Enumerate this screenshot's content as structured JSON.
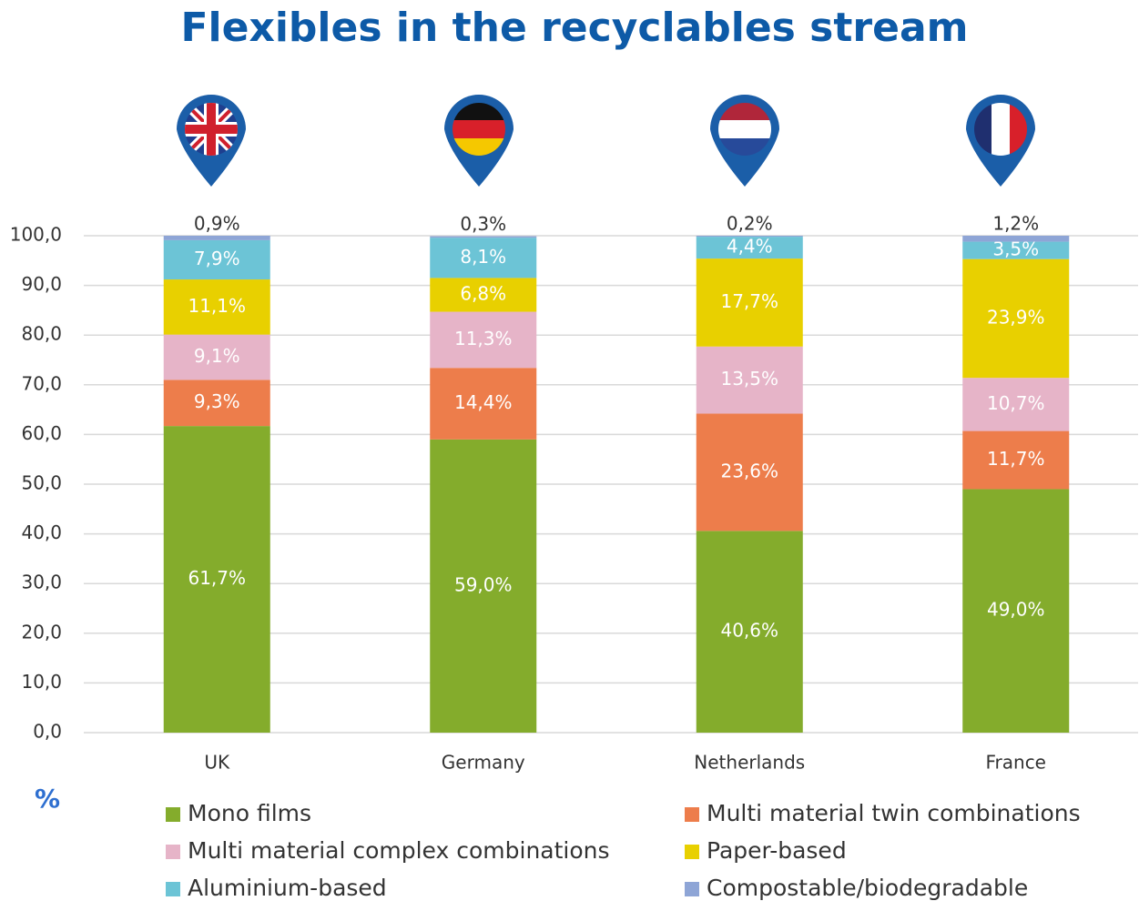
{
  "chart_data": {
    "type": "stacked_bar",
    "title": "Flexibles in the recyclables stream",
    "y_label": "%",
    "categories": [
      "UK",
      "Germany",
      "Netherlands",
      "France"
    ],
    "series": [
      {
        "name": "Mono films",
        "color": "#84ac2c",
        "values": [
          61.7,
          59.0,
          40.6,
          49.0
        ],
        "value_labels": [
          "61,7%",
          "59,0%",
          "40,6%",
          "49,0%"
        ]
      },
      {
        "name": "Multi material twin combinations",
        "color": "#ed7d4b",
        "values": [
          9.3,
          14.4,
          23.6,
          11.7
        ],
        "value_labels": [
          "9,3%",
          "14,4%",
          "23,6%",
          "11,7%"
        ]
      },
      {
        "name": "Multi material complex combinations",
        "color": "#e6b4c8",
        "values": [
          9.1,
          11.3,
          13.5,
          10.7
        ],
        "value_labels": [
          "9,1%",
          "11,3%",
          "13,5%",
          "10,7%"
        ]
      },
      {
        "name": "Paper-based",
        "color": "#e8d000",
        "values": [
          11.1,
          6.8,
          17.7,
          23.9
        ],
        "value_labels": [
          "11,1%",
          "6,8%",
          "17,7%",
          "23,9%"
        ]
      },
      {
        "name": "Aluminium-based",
        "color": "#6cc4d6",
        "values": [
          7.9,
          8.1,
          4.4,
          3.5
        ],
        "value_labels": [
          "7,9%",
          "8,1%",
          "4,4%",
          "3,5%"
        ]
      },
      {
        "name": "Compostable/biodegradable",
        "color": "#8ea5d6",
        "values": [
          0.9,
          0.3,
          0.2,
          1.2
        ],
        "value_labels": [
          "0,9%",
          "0,3%",
          "0,2%",
          "1,2%"
        ]
      }
    ],
    "ylim": [
      0,
      100
    ],
    "yticks": [
      {
        "value": 0,
        "label": "0,0"
      },
      {
        "value": 10,
        "label": "10,0"
      },
      {
        "value": 20,
        "label": "20,0"
      },
      {
        "value": 30,
        "label": "30,0"
      },
      {
        "value": 40,
        "label": "40,0"
      },
      {
        "value": 50,
        "label": "50,0"
      },
      {
        "value": 60,
        "label": "60,0"
      },
      {
        "value": 70,
        "label": "70,0"
      },
      {
        "value": 80,
        "label": "80,0"
      },
      {
        "value": 90,
        "label": "90,0"
      },
      {
        "value": 100,
        "label": "100,0"
      }
    ],
    "grid": true
  }
}
